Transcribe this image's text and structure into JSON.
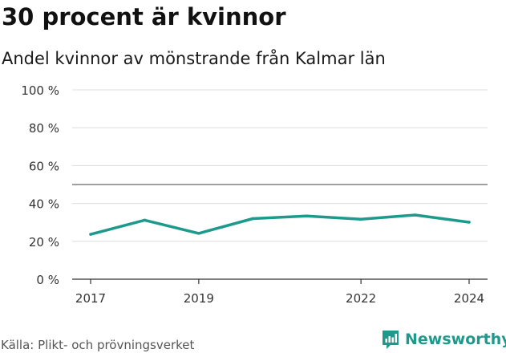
{
  "title": "30 procent är kvinnor",
  "subtitle": "Andel kvinnor av mönstrande från Kalmar län",
  "source": "Källa: Plikt- och prövningsverket",
  "brand": {
    "name": "Newsworthy",
    "icon": "newsworthy-logo-icon",
    "color": "#1e9a8c"
  },
  "colors": {
    "line": "#1e9a8c",
    "grid": "#dddddd",
    "reference": "#666666",
    "axis": "#333333"
  },
  "chart_data": {
    "type": "line",
    "title": "30 procent är kvinnor",
    "subtitle": "Andel kvinnor av mönstrande från Kalmar län",
    "xlabel": "",
    "ylabel": "",
    "x": [
      2017,
      2018,
      2019,
      2020,
      2021,
      2022,
      2023,
      2024
    ],
    "series": [
      {
        "name": "Andel kvinnor",
        "values": [
          23.7,
          31.2,
          24.2,
          32.0,
          33.4,
          31.7,
          33.9,
          30.1
        ]
      }
    ],
    "x_ticks": [
      2017,
      2019,
      2022,
      2024
    ],
    "x_tick_labels": [
      "2017",
      "2019",
      "2022",
      "2024"
    ],
    "y_ticks": [
      0,
      20,
      40,
      60,
      80,
      100
    ],
    "y_tick_labels": [
      "0 %",
      "20 %",
      "40 %",
      "60 %",
      "80 %",
      "100 %"
    ],
    "ylim": [
      0,
      100
    ],
    "xlim": [
      2017,
      2024
    ],
    "reference_line": 50,
    "grid": true,
    "legend": "none"
  }
}
